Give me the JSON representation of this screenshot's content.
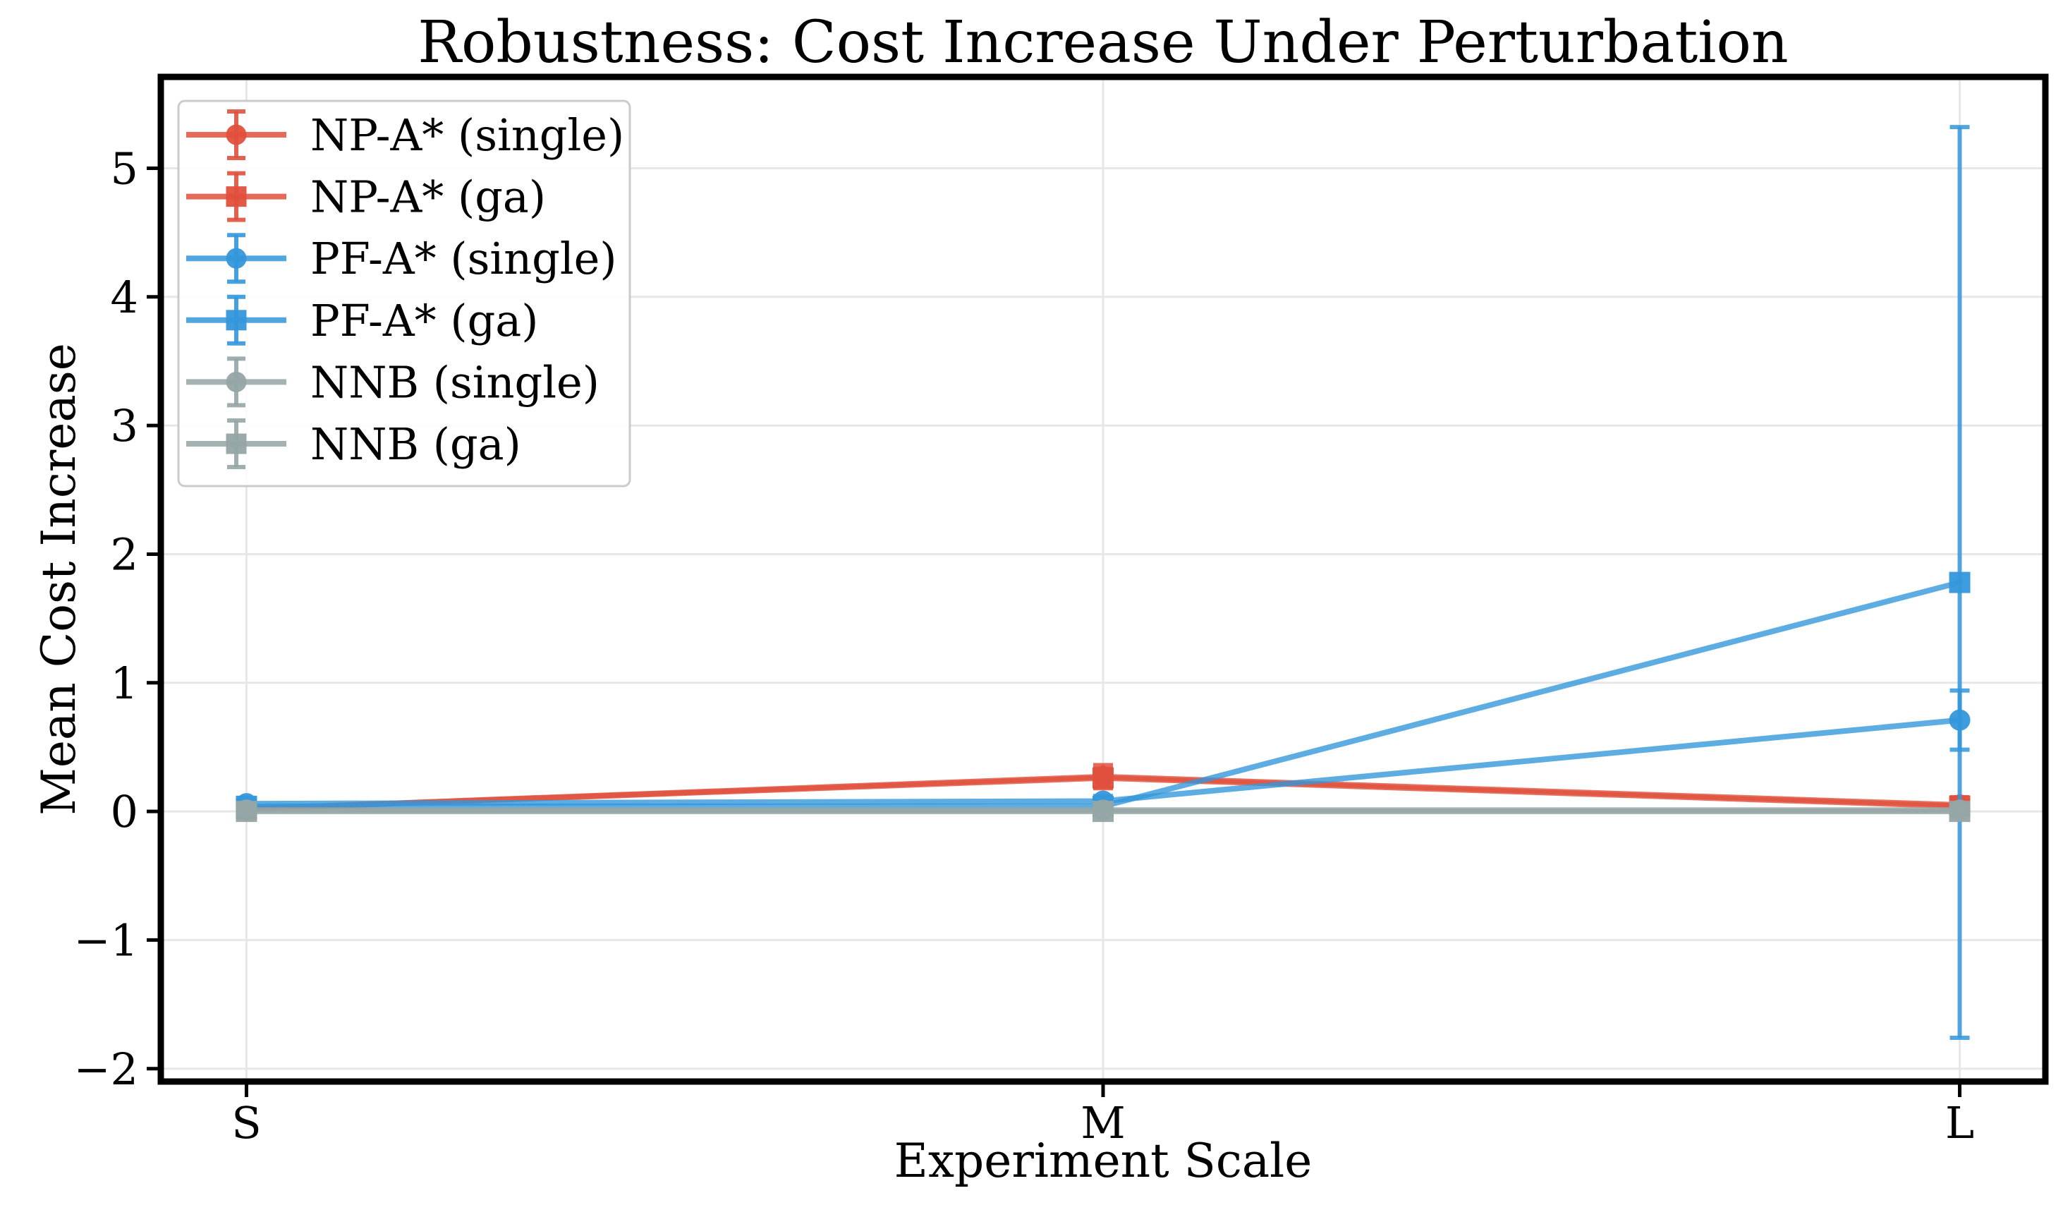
{
  "chart_data": {
    "type": "line",
    "title": "Robustness: Cost Increase Under Perturbation",
    "xlabel": "Experiment Scale",
    "ylabel": "Mean Cost Increase",
    "categories": [
      "S",
      "M",
      "L"
    ],
    "ylim": [
      -2.1,
      5.71
    ],
    "yticks": [
      -2,
      -1,
      0,
      1,
      2,
      3,
      4,
      5
    ],
    "ytick_labels": [
      "−2",
      "−1",
      "0",
      "1",
      "2",
      "3",
      "4",
      "5"
    ],
    "grid": true,
    "grid_color": "#E7E7E7",
    "legend_position": "upper-left",
    "series": [
      {
        "name": "NP-A* (single)",
        "color": "#E0503C",
        "marker": "circle",
        "values": [
          0.02,
          0.27,
          0.05
        ],
        "errors": [
          0.03,
          0.09,
          0.06
        ]
      },
      {
        "name": "NP-A* (ga)",
        "color": "#E0503C",
        "marker": "square",
        "values": [
          0.02,
          0.26,
          0.04
        ],
        "errors": [
          0.02,
          0.07,
          0.05
        ]
      },
      {
        "name": "PF-A* (single)",
        "color": "#3497DB",
        "marker": "circle",
        "values": [
          0.06,
          0.08,
          0.71
        ],
        "errors": [
          0.03,
          0.04,
          0.23
        ]
      },
      {
        "name": "PF-A* (ga)",
        "color": "#3497DB",
        "marker": "square",
        "values": [
          0.04,
          0.04,
          1.78
        ],
        "errors": [
          0.03,
          0.05,
          3.54
        ]
      },
      {
        "name": "NNB (single)",
        "color": "#95A5A5",
        "marker": "circle",
        "values": [
          0.01,
          0.01,
          0.01
        ],
        "errors": [
          0.02,
          0.02,
          0.03
        ]
      },
      {
        "name": "NNB (ga)",
        "color": "#95A5A5",
        "marker": "square",
        "values": [
          0.0,
          0.0,
          0.0
        ],
        "errors": [
          0.02,
          0.02,
          0.03
        ]
      }
    ]
  }
}
